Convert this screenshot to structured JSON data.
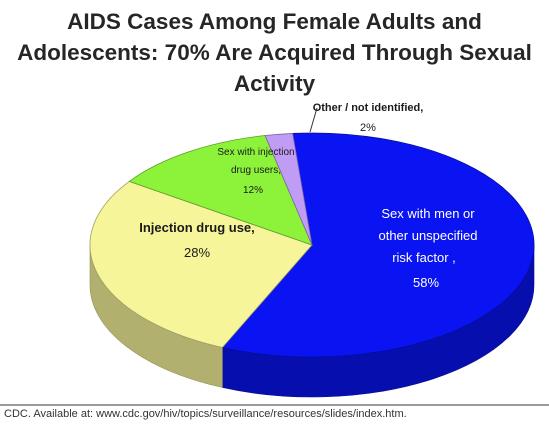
{
  "title": {
    "line1": "AIDS Cases Among Female Adults and",
    "line2": "Adolescents: 70% Are Acquired Through Sexual",
    "line3": "Activity"
  },
  "chart_data": {
    "type": "pie",
    "slices": [
      {
        "label": "Sex with men or other unspecified risk factor",
        "value": 58,
        "value_text": "58%",
        "color": "#0a14f2"
      },
      {
        "label": "Injection drug use",
        "value": 28,
        "value_text": "28%",
        "color": "#f6f59a"
      },
      {
        "label": "Sex with injection drug users",
        "value": 12,
        "value_text": "12%",
        "color": "#8cf23a"
      },
      {
        "label": "Other / not identified",
        "value": 2,
        "value_text": "2%",
        "color": "#c09cf5"
      }
    ],
    "labels": {
      "men_line1": "Sex with men or",
      "men_line2": "other unspecified",
      "men_line3": "risk factor ,",
      "men_value": "58%",
      "idu_line1": "Injection drug use,",
      "idu_value": "28%",
      "sexidu_line1": "Sex with injection",
      "sexidu_line2": "drug users,",
      "sexidu_value": "12%",
      "other_line1": "Other / not identified,",
      "other_value": "2%"
    }
  },
  "source": "CDC. Available at: www.cdc.gov/hiv/topics/surveillance/resources/slides/index.htm."
}
